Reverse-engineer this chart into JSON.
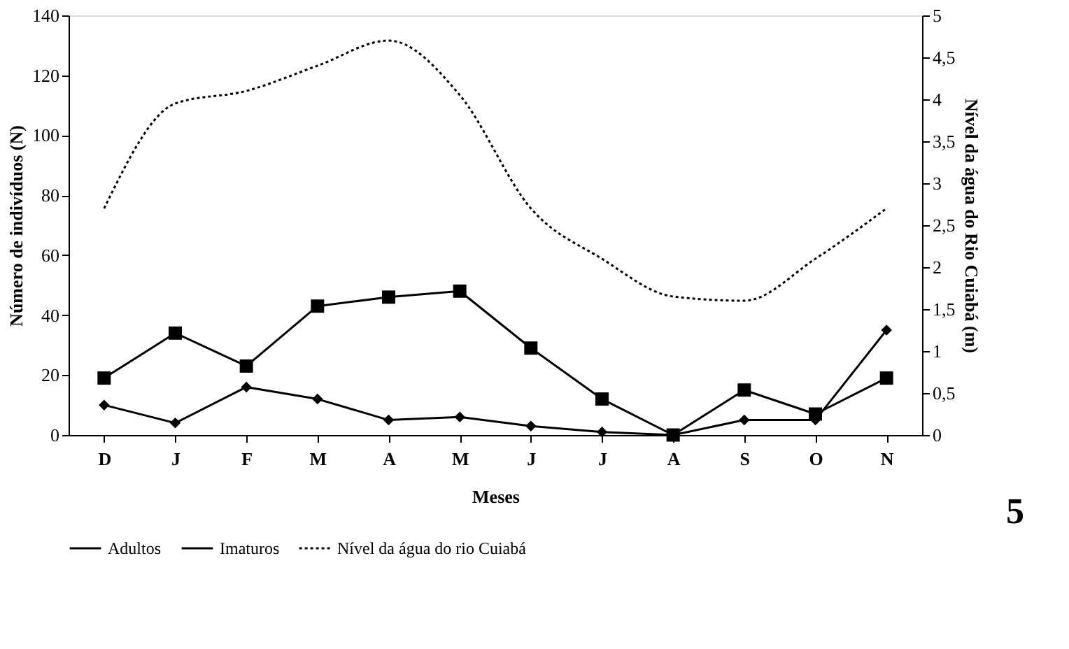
{
  "chart_data": {
    "type": "line",
    "xlabel": "Meses",
    "ylabel": "Número de indivíduos (N)",
    "y2label": "Nível da água do Rio Cuiabá (m)",
    "categories": [
      "D",
      "J",
      "F",
      "M",
      "A",
      "M",
      "J",
      "J",
      "A",
      "S",
      "O",
      "N"
    ],
    "series": [
      {
        "name": "Adultos",
        "color": "#000000",
        "marker": "square",
        "line_style": "solid",
        "values": [
          19,
          34,
          23,
          43,
          46,
          48,
          29,
          12,
          0,
          15,
          7,
          19
        ]
      },
      {
        "name": "Imaturos",
        "color": "#000000",
        "marker": "diamond",
        "line_style": "solid",
        "values": [
          10,
          4,
          16,
          12,
          5,
          6,
          3,
          1,
          0,
          5,
          5,
          35
        ]
      },
      {
        "name": "Nível da água do rio Cuiabá",
        "color": "#000000",
        "marker": "none",
        "line_style": "dotted",
        "axis": "y2",
        "values": [
          2.7,
          3.95,
          4.1,
          4.4,
          4.7,
          4.05,
          2.7,
          2.1,
          1.65,
          1.6,
          2.1,
          2.7
        ]
      }
    ],
    "ylim": [
      0,
      140
    ],
    "yticks": [
      0,
      20,
      40,
      60,
      80,
      100,
      120,
      140
    ],
    "y2lim": [
      0,
      5
    ],
    "y2ticks": [
      0,
      {
        "value": 0.5,
        "label": "0,5"
      },
      1,
      {
        "value": 1.5,
        "label": "1,5"
      },
      2,
      {
        "value": 2.5,
        "label": "2,5"
      },
      3,
      {
        "value": 3.5,
        "label": "3,5"
      },
      4,
      {
        "value": 4.5,
        "label": "4,5"
      },
      5
    ],
    "grid": false,
    "legend": "bottom",
    "annotations": [
      "5"
    ]
  }
}
